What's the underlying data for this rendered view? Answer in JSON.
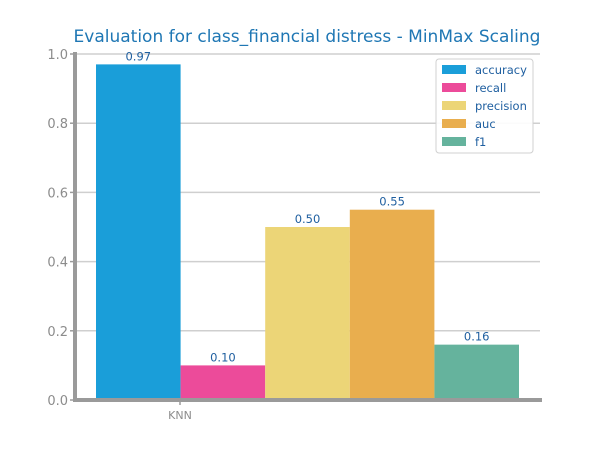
{
  "chart_data": {
    "type": "bar",
    "title": "Evaluation for class_financial distress - MinMax Scaling",
    "xlabel": "",
    "ylabel": "",
    "categories": [
      "KNN"
    ],
    "ylim": [
      0,
      1.0
    ],
    "yticks": [
      "0.0",
      "0.2",
      "0.4",
      "0.6",
      "0.8",
      "1.0"
    ],
    "grid": true,
    "legend_position": "top-right",
    "series": [
      {
        "name": "accuracy",
        "values": [
          0.97
        ],
        "label": "0.97",
        "color": "#1a9ed9"
      },
      {
        "name": "recall",
        "values": [
          0.1
        ],
        "label": "0.10",
        "color": "#ec4b9a"
      },
      {
        "name": "precision",
        "values": [
          0.5
        ],
        "label": "0.50",
        "color": "#ecd577"
      },
      {
        "name": "auc",
        "values": [
          0.55
        ],
        "label": "0.55",
        "color": "#e9ae4e"
      },
      {
        "name": "f1",
        "values": [
          0.16
        ],
        "label": "0.16",
        "color": "#65b39d"
      }
    ]
  }
}
